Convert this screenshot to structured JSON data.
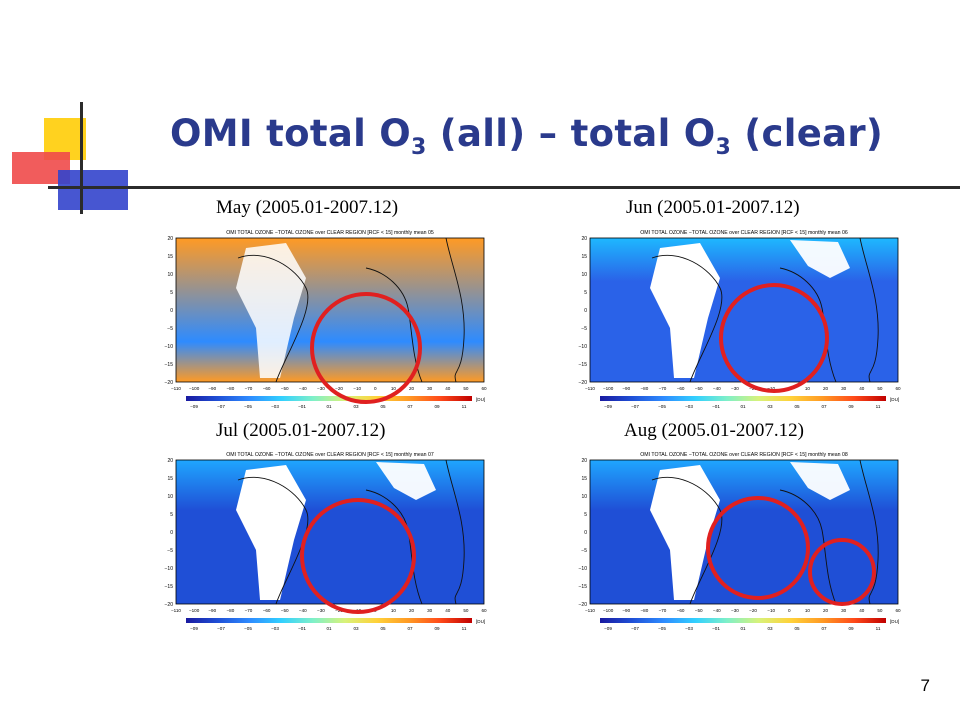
{
  "slide": {
    "title_prefix": "OMI total O",
    "title_sub1": "3",
    "title_middle": " (all) – total O",
    "title_sub2": "3",
    "title_suffix": " (clear)",
    "page_number": "7"
  },
  "panels": [
    {
      "caption": "May (2005.01-2007.12)",
      "map_title": "OMI TOTAL OZONE −TOTAL OZONE over CLEAR REGION [RCF < 15] monthly mean 05",
      "highlight_circles": 1
    },
    {
      "caption": "Jun (2005.01-2007.12)",
      "map_title": "OMI TOTAL OZONE −TOTAL OZONE over CLEAR REGION [RCF < 15] monthly mean 06",
      "highlight_circles": 1
    },
    {
      "caption": "Jul (2005.01-2007.12)",
      "map_title": "OMI TOTAL OZONE −TOTAL OZONE over CLEAR REGION [RCF < 15] monthly mean 07",
      "highlight_circles": 1
    },
    {
      "caption": "Aug (2005.01-2007.12)",
      "map_title": "OMI TOTAL OZONE −TOTAL OZONE over CLEAR REGION [RCF < 15] monthly mean 08",
      "highlight_circles": 2
    }
  ],
  "map_axes": {
    "lat_ticks": [
      "20",
      "15",
      "10",
      "5",
      "0",
      "−5",
      "−10",
      "−15",
      "−20"
    ],
    "lon_ticks": [
      "−110",
      "−100",
      "−90",
      "−80",
      "−70",
      "−60",
      "−50",
      "−40",
      "−30",
      "−20",
      "−10",
      "0",
      "10",
      "20",
      "30",
      "40",
      "50",
      "60"
    ]
  },
  "colorbar": {
    "ticks": [
      "−09",
      "−07",
      "−05",
      "−03",
      "−01",
      "01",
      "03",
      "05",
      "07",
      "09",
      "11"
    ],
    "unit": "[DU]"
  },
  "colors": {
    "title": "#2a3a8c",
    "highlight_circle": "#e02020"
  }
}
